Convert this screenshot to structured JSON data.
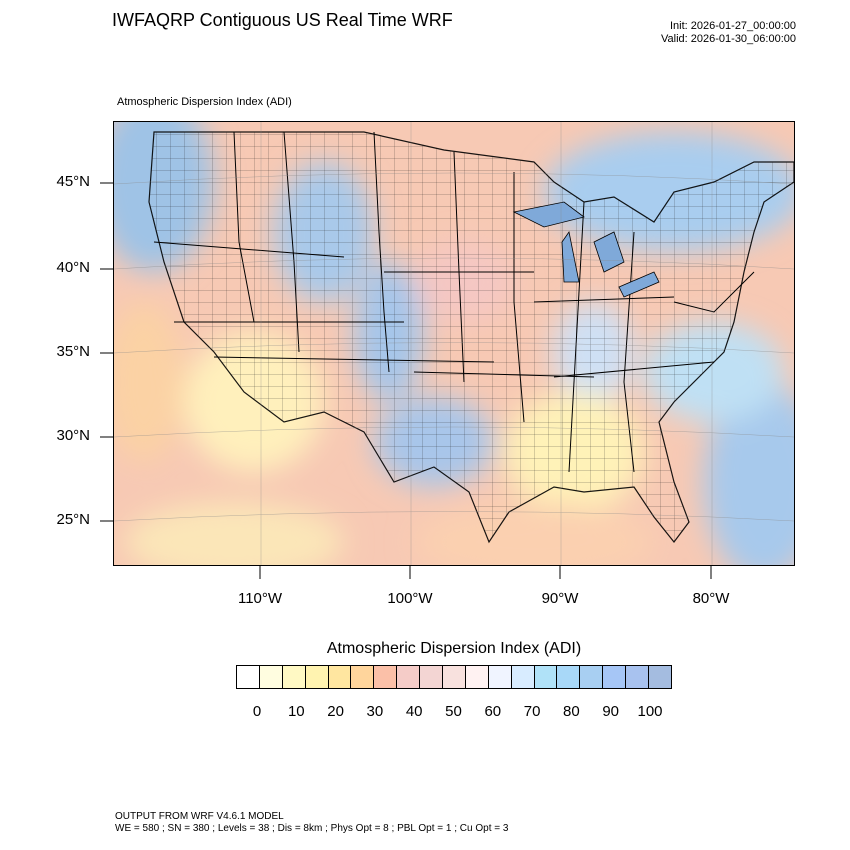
{
  "header": {
    "title": "IWFAQRP Contiguous US Real Time WRF",
    "init": "Init: 2026-01-27_00:00:00",
    "valid": "Valid: 2026-01-30_06:00:00"
  },
  "map": {
    "subtitle": "Atmospheric Dispersion Index   (ADI)",
    "lat_labels": [
      "45°N",
      "40°N",
      "35°N",
      "30°N",
      "25°N"
    ],
    "lon_labels": [
      "110°W",
      "100°W",
      "90°W",
      "80°W"
    ]
  },
  "colorbar": {
    "title": "Atmospheric Dispersion Index  (ADI)",
    "tick_labels": [
      "0",
      "10",
      "20",
      "30",
      "40",
      "50",
      "60",
      "70",
      "80",
      "90",
      "100"
    ],
    "colors": [
      "#ffffff",
      "#fffde0",
      "#fff9c4",
      "#fff3b0",
      "#ffe6a0",
      "#ffd59c",
      "#fbc0a8",
      "#f5ccc8",
      "#f3d5d3",
      "#f8e1de",
      "#fff2f2",
      "#f0f4ff",
      "#d8ecff",
      "#b0e2f8",
      "#a8d8f8",
      "#a8cff2",
      "#a6c6f6",
      "#a8c2ef",
      "#a4bce0"
    ]
  },
  "footer": {
    "line1": "OUTPUT FROM WRF V4.6.1 MODEL",
    "line2": "WE = 580 ; SN = 380 ; Levels = 38 ; Dis = 8km ; Phys Opt = 8 ; PBL Opt = 1 ; Cu Opt = 3"
  }
}
